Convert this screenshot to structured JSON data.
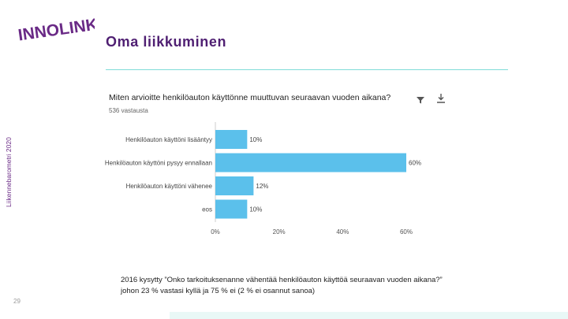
{
  "logo": {
    "text": "INNOLINK"
  },
  "side_label": "Liikennebarometri 2020",
  "page_title": "Oma liikkuminen",
  "chart": {
    "question": "Miten arvioitte henkilöauton käyttönne muuttuvan seuraavan vuoden aikana?",
    "responses": "536 vastausta",
    "filter_icon": "filter-icon",
    "download_icon": "download-icon"
  },
  "chart_data": {
    "type": "bar",
    "orientation": "horizontal",
    "categories": [
      "Henkilöauton käyttöni lisääntyy",
      "Henkilöauton käyttöni pysyy ennallaan",
      "Henkilöauton käyttöni vähenee",
      "eos"
    ],
    "values": [
      10,
      60,
      12,
      10
    ],
    "value_labels": [
      "10%",
      "60%",
      "12%",
      "10%"
    ],
    "x_ticks": [
      "0%",
      "20%",
      "40%",
      "60%"
    ],
    "xlim": [
      0,
      60
    ],
    "bar_color": "#5bc0eb",
    "grid": false
  },
  "note": {
    "line1": "2016 kysytty ”Onko tarkoituksenanne vähentää henkilöauton käyttöä seuraavan vuoden aikana?”",
    "line2": "johon 23 % vastasi kyllä ja 75 % ei (2 % ei osannut sanoa)"
  },
  "page_number": "29",
  "colors": {
    "brand_purple": "#6a2a86",
    "accent_teal": "#7fdcd8",
    "bar": "#5bc0eb"
  }
}
